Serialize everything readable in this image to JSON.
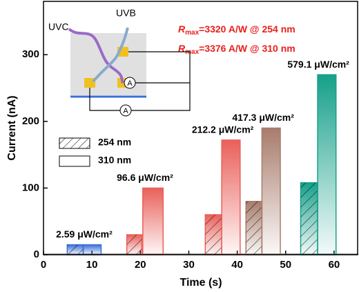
{
  "chart_data": {
    "type": "pulse",
    "x_label": "Time (s)",
    "y_label": "Current (nA)",
    "xlim": [
      0,
      65
    ],
    "ylim": [
      0,
      380
    ],
    "xticks": [
      0,
      10,
      20,
      30,
      40,
      50,
      60
    ],
    "yticks": [
      0,
      100,
      200,
      300
    ],
    "pulse_colors": [
      "#3a6fd8",
      "#e9605a",
      "#e9605a",
      "#a87c6c",
      "#16a08a"
    ],
    "intensity_labels": [
      "2.59 μW/cm²",
      "96.6 μW/cm²",
      "212.2 μW/cm²",
      "417.3 μW/cm²",
      "579.1 μW/cm²"
    ],
    "series": [
      {
        "name": "254 nm",
        "hatched": true,
        "x_start": [
          4.9,
          17.2,
          33.4,
          41.8,
          53.1
        ],
        "x_end": [
          8.2,
          20.3,
          36.8,
          45.1,
          56.6
        ],
        "values": [
          15,
          30,
          60,
          80,
          108
        ]
      },
      {
        "name": "310 nm",
        "hatched": false,
        "x_start": [
          8.2,
          20.5,
          36.8,
          45.1,
          56.6
        ],
        "x_end": [
          11.9,
          24.7,
          40.6,
          48.9,
          60.4
        ],
        "values": [
          15,
          100,
          172,
          190,
          270
        ]
      }
    ],
    "annotations": [
      {
        "symbol": "R",
        "sub": "max",
        "text": "=3320 A/W @ 254 nm"
      },
      {
        "symbol": "R",
        "sub": "max",
        "text": "=3376 A/W @ 310 nm"
      }
    ],
    "inset_labels": [
      "UVC",
      "UVB"
    ]
  }
}
